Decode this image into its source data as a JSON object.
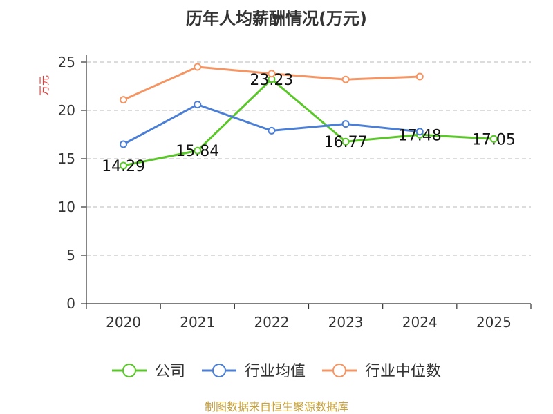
{
  "chart_data": {
    "type": "line",
    "title": "历年人均薪酬情况(万元)",
    "ylabel": "万元",
    "xlabel": "",
    "categories": [
      "2020",
      "2021",
      "2022",
      "2023",
      "2024",
      "2025"
    ],
    "ylim": [
      0,
      25
    ],
    "yticks": [
      0,
      5,
      10,
      15,
      20,
      25
    ],
    "grid": true,
    "legend_position": "bottom",
    "series": [
      {
        "name": "公司",
        "color": "#5ac729",
        "values": [
          14.29,
          15.84,
          23.23,
          16.77,
          17.48,
          17.05
        ],
        "labels": [
          "14.29",
          "15.84",
          "23.23",
          "16.77",
          "17.48",
          "17.05"
        ]
      },
      {
        "name": "行业均值",
        "color": "#4b7fd6",
        "values": [
          16.5,
          20.6,
          17.9,
          18.6,
          17.8,
          null
        ]
      },
      {
        "name": "行业中位数",
        "color": "#f59563",
        "values": [
          21.1,
          24.5,
          23.8,
          23.2,
          23.5,
          null
        ]
      }
    ]
  },
  "source": "制图数据来自恒生聚源数据库"
}
